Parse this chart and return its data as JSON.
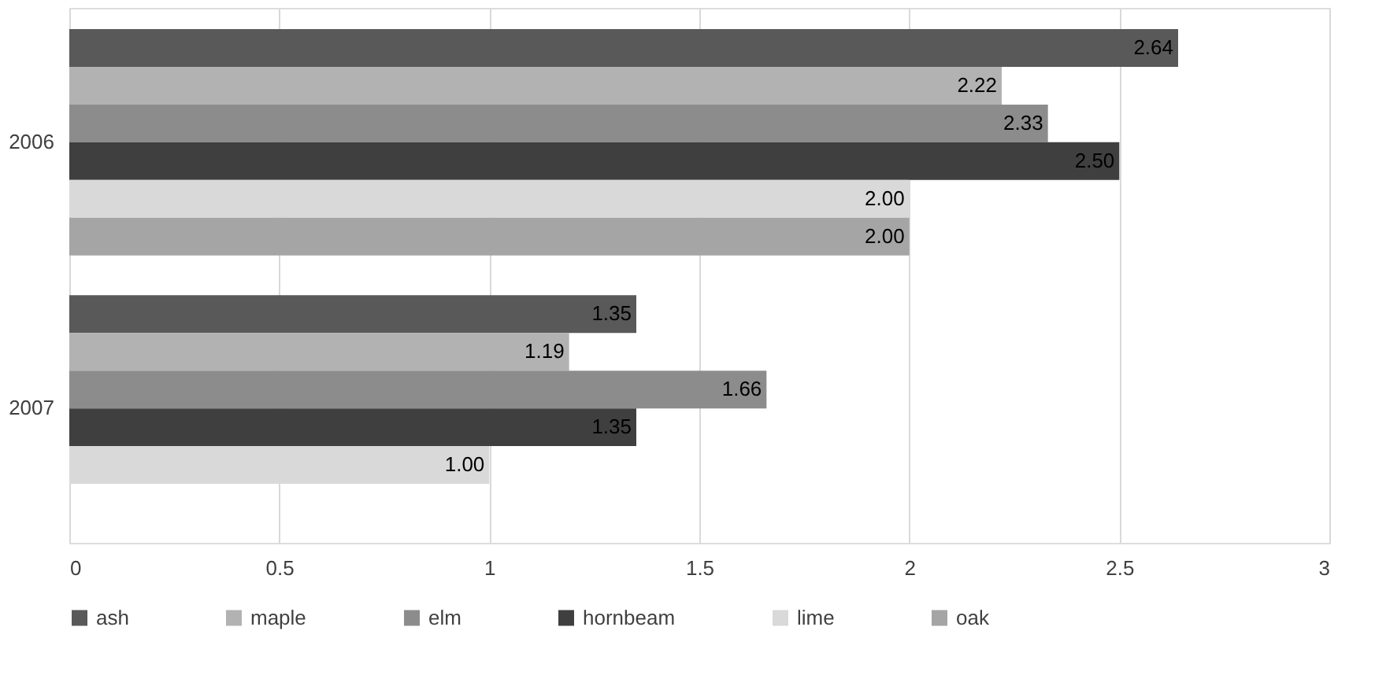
{
  "chart_data": {
    "type": "bar",
    "orientation": "horizontal",
    "categories": [
      "2006",
      "2007"
    ],
    "series": [
      {
        "name": "ash",
        "color": "#595959",
        "values": [
          2.64,
          1.35
        ],
        "value_labels": [
          "2.64",
          "1.35"
        ]
      },
      {
        "name": "maple",
        "color": "#b2b2b2",
        "values": [
          2.22,
          1.19
        ],
        "value_labels": [
          "2.22",
          "1.19"
        ]
      },
      {
        "name": "elm",
        "color": "#8c8c8c",
        "values": [
          2.33,
          1.66
        ],
        "value_labels": [
          "2.33",
          "1.66"
        ]
      },
      {
        "name": "hornbeam",
        "color": "#3f3f3f",
        "values": [
          2.5,
          1.35
        ],
        "value_labels": [
          "2.50",
          "1.35"
        ]
      },
      {
        "name": "lime",
        "color": "#d9d9d9",
        "values": [
          2.0,
          1.0
        ],
        "value_labels": [
          "2.00",
          "1.00"
        ]
      },
      {
        "name": "oak",
        "color": "#a5a5a5",
        "values": [
          2.0,
          null
        ],
        "value_labels": [
          "2.00",
          null
        ]
      }
    ],
    "xlim": [
      0,
      3
    ],
    "xticks": [
      0,
      0.5,
      1,
      1.5,
      2,
      2.5,
      3
    ],
    "grid": "x",
    "legend": "bottom"
  }
}
